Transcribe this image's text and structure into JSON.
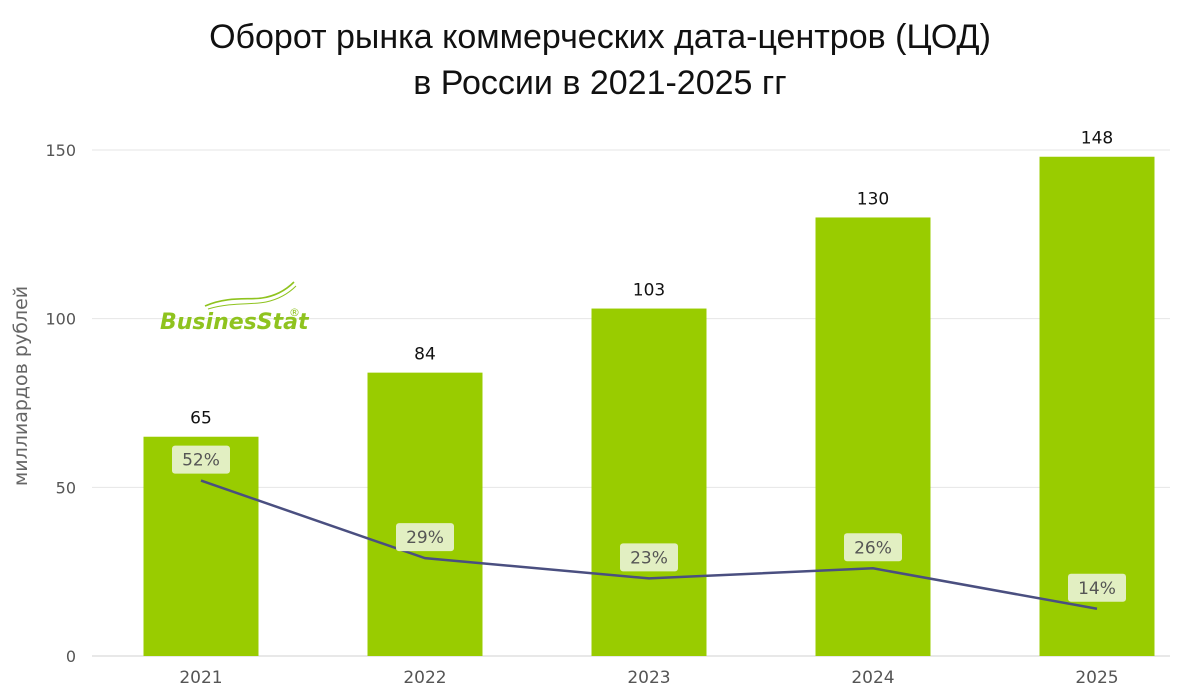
{
  "chart_data": {
    "type": "bar",
    "title_lines": [
      "Оборот рынка коммерческих дата-центров (ЦОД)",
      "в России в 2021-2025 гг"
    ],
    "ylabel": "миллиардов рублей",
    "xlabel": "",
    "ylim": [
      0,
      150
    ],
    "yticks": [
      0,
      50,
      100,
      150
    ],
    "grid": true,
    "categories": [
      "2021",
      "2022",
      "2023",
      "2024",
      "2025"
    ],
    "series": [
      {
        "values": [
          65,
          84,
          103,
          130,
          148
        ],
        "labels": [
          "65",
          "84",
          "103",
          "130",
          "148"
        ],
        "color": "#99cc00"
      }
    ],
    "growth_line": {
      "values": [
        52,
        29,
        23,
        26,
        14
      ],
      "labels": [
        "52%",
        "29%",
        "23%",
        "26%",
        "14%"
      ],
      "color": "#4a4f80",
      "label_bg": "#e2efc2"
    }
  },
  "logo": {
    "text": "BusinesStat",
    "mark": "®",
    "color": "#8fc31f"
  }
}
